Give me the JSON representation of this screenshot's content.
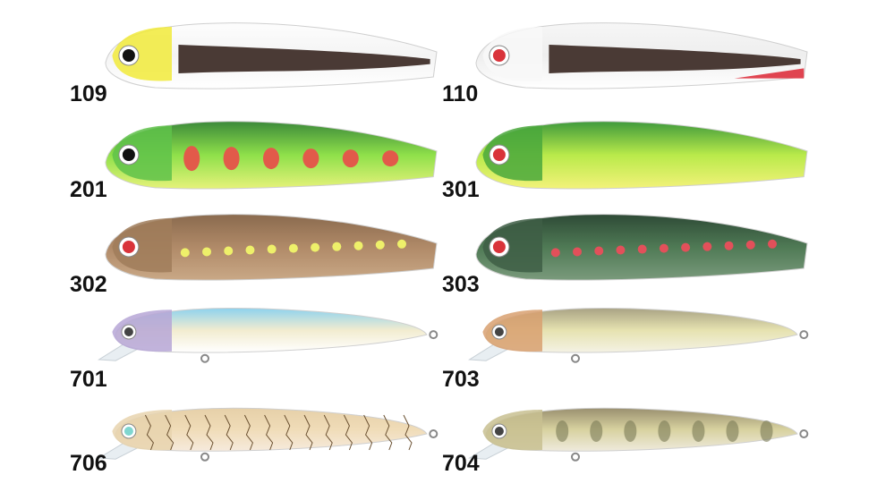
{
  "items": [
    {
      "label": "109"
    },
    {
      "label": "110"
    },
    {
      "label": "201"
    },
    {
      "label": "301"
    },
    {
      "label": "302"
    },
    {
      "label": "303"
    },
    {
      "label": "701"
    },
    {
      "label": "703"
    },
    {
      "label": "706"
    },
    {
      "label": "704"
    }
  ]
}
